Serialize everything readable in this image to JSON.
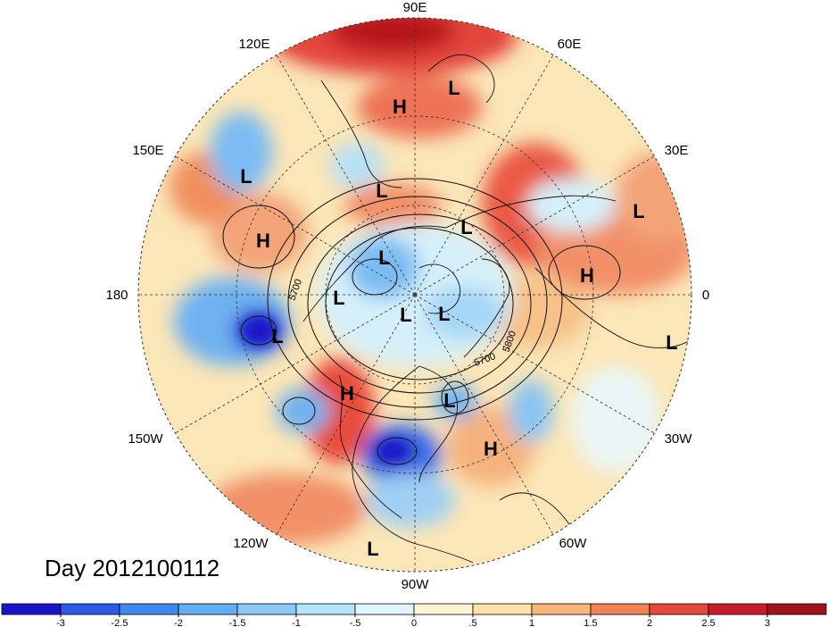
{
  "map": {
    "projection": "polar-stereographic-north",
    "longitude_labels": [
      "90E",
      "60E",
      "30E",
      "0",
      "30W",
      "60W",
      "90W",
      "120W",
      "150W",
      "180",
      "150E",
      "120E"
    ],
    "contour_labels": [
      "5700",
      "5800",
      "5700"
    ],
    "day_label": "Day 2012100112",
    "pressure_centers": [
      {
        "type": "H",
        "label": "H",
        "region": "central-asia"
      },
      {
        "type": "L",
        "label": "L",
        "region": "western-siberia"
      },
      {
        "type": "L",
        "label": "L",
        "region": "eastern-siberia"
      },
      {
        "type": "L",
        "label": "L",
        "region": "northern-siberia"
      },
      {
        "type": "H",
        "label": "H",
        "region": "north-pacific-west"
      },
      {
        "type": "L",
        "label": "L",
        "region": "barents-sea"
      },
      {
        "type": "L",
        "label": "L",
        "region": "arctic-east"
      },
      {
        "type": "L",
        "label": "L",
        "region": "north-atlantic-east"
      },
      {
        "type": "H",
        "label": "H",
        "region": "europe"
      },
      {
        "type": "L",
        "label": "L",
        "region": "arctic-west"
      },
      {
        "type": "L",
        "label": "L",
        "region": "pole"
      },
      {
        "type": "L",
        "label": "L",
        "region": "greenland"
      },
      {
        "type": "L",
        "label": "L",
        "region": "gulf-of-alaska"
      },
      {
        "type": "L",
        "label": "L",
        "region": "atlantic-east"
      },
      {
        "type": "H",
        "label": "H",
        "region": "western-north-america"
      },
      {
        "type": "L",
        "label": "L",
        "region": "hudson-bay"
      },
      {
        "type": "H",
        "label": "H",
        "region": "north-atlantic-west"
      },
      {
        "type": "L",
        "label": "L",
        "region": "eastern-pacific-tropics"
      }
    ]
  },
  "colorbar": {
    "colors": [
      "#1a14c8",
      "#2a5ae6",
      "#3f88f0",
      "#62aef2",
      "#8bcaf5",
      "#b6e4f8",
      "#e0f5fb",
      "#fcf6d6",
      "#fbe3aa",
      "#f8b679",
      "#f28355",
      "#e6483a",
      "#c91b2a",
      "#a0121e"
    ],
    "tick_labels": [
      "-3",
      "-2.5",
      "-2",
      "-1.5",
      "-1",
      "-.5",
      "0",
      ".5",
      "1",
      "1.5",
      "2",
      "2.5",
      "3"
    ]
  }
}
